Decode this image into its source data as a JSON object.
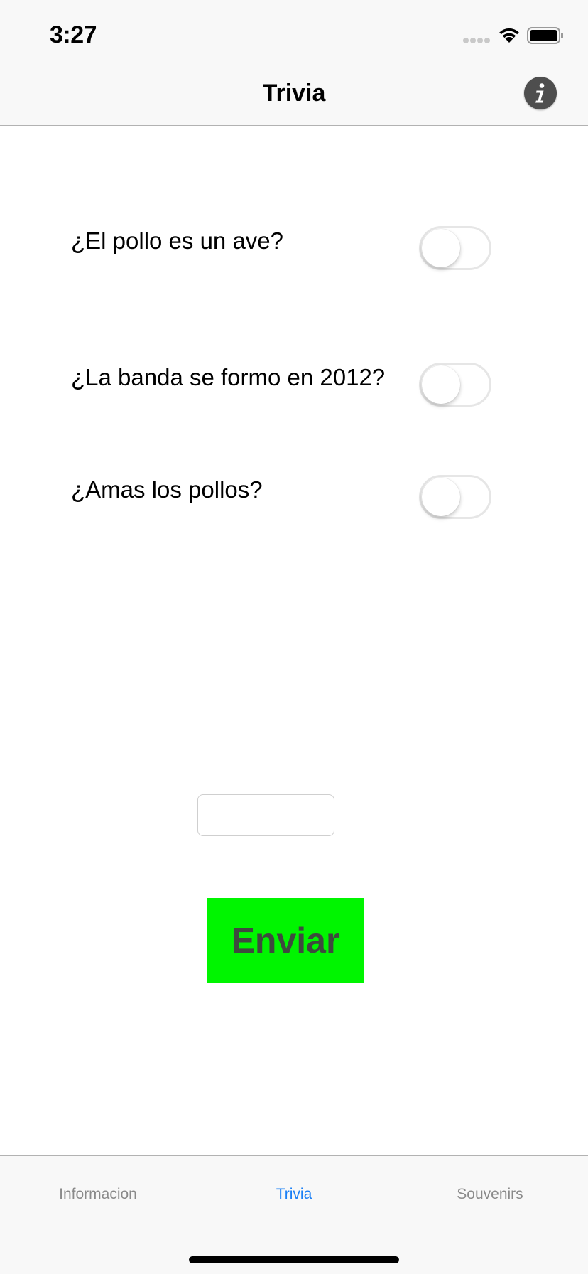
{
  "status_bar": {
    "time": "3:27"
  },
  "nav": {
    "title": "Trivia",
    "info_icon": "info-icon"
  },
  "questions": [
    {
      "text": "¿El pollo es un ave?",
      "toggle_on": false
    },
    {
      "text": "¿La banda se formo en 2012?",
      "toggle_on": false
    },
    {
      "text": "¿Amas los pollos?",
      "toggle_on": false
    }
  ],
  "answer_field": {
    "value": "",
    "placeholder": ""
  },
  "submit": {
    "label": "Enviar",
    "background": "#00f500",
    "text_color": "#3e4a3e"
  },
  "tabs": [
    {
      "label": "Informacion",
      "active": false
    },
    {
      "label": "Trivia",
      "active": true
    },
    {
      "label": "Souvenirs",
      "active": false
    }
  ],
  "colors": {
    "accent": "#1a7ff5",
    "inactive_tab": "#8a8a8a"
  }
}
